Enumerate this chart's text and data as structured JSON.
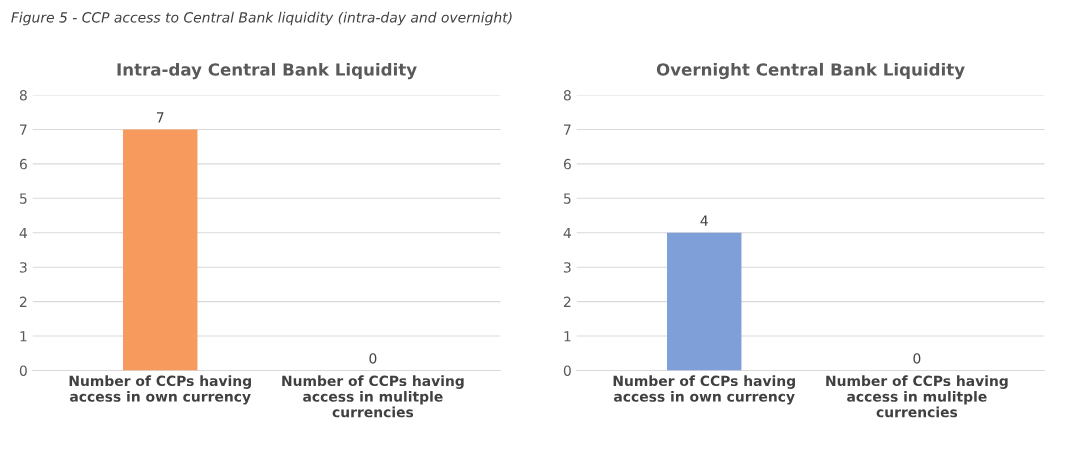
{
  "chart_data": [
    {
      "type": "bar",
      "title": "Intra-day Central Bank Liquidity",
      "annotations": [
        "Figure 5 - CCP access to Central Bank liquidity (intra-day and overnight)"
      ],
      "categories": [
        "Number of CCPs having\naccess in own currency",
        "Number of CCPs having\naccess in mulitple\ncurrencies"
      ],
      "values": [
        7,
        0
      ],
      "color": "#f79a5e",
      "ylim": [
        0,
        8
      ],
      "yticks": [
        0,
        1,
        2,
        3,
        4,
        5,
        6,
        7,
        8
      ],
      "grid": "y",
      "data_labels": true
    },
    {
      "type": "bar",
      "title": "Overnight Central Bank Liquidity",
      "categories": [
        "Number of CCPs having\naccess in own currency",
        "Number of CCPs having\naccess in mulitple\ncurrencies"
      ],
      "values": [
        4,
        0
      ],
      "color": "#7f9fd8",
      "ylim": [
        0,
        8
      ],
      "yticks": [
        0,
        1,
        2,
        3,
        4,
        5,
        6,
        7,
        8
      ],
      "grid": "y",
      "data_labels": true
    }
  ]
}
